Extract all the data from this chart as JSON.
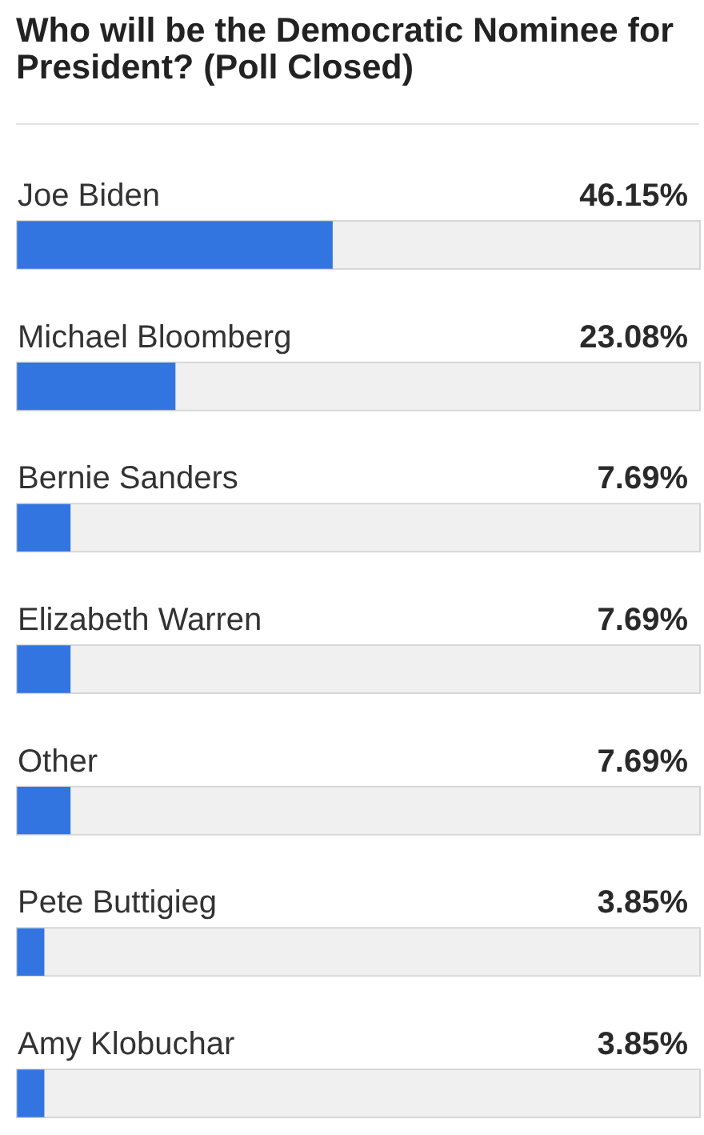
{
  "chart_data": {
    "type": "bar",
    "orientation": "horizontal",
    "title": "Who will be the Democratic Nominee for President? (Poll Closed)",
    "categories": [
      "Joe Biden",
      "Michael Bloomberg",
      "Bernie Sanders",
      "Elizabeth Warren",
      "Other",
      "Pete Buttigieg",
      "Amy Klobuchar"
    ],
    "values": [
      46.15,
      23.08,
      7.69,
      7.69,
      7.69,
      3.85,
      3.85
    ],
    "value_labels": [
      "46.15%",
      "23.08%",
      "7.69%",
      "7.69%",
      "7.69%",
      "3.85%",
      "3.85%"
    ],
    "color": "#3375e0",
    "xlim": [
      0,
      100
    ],
    "tick_labels": "y"
  }
}
